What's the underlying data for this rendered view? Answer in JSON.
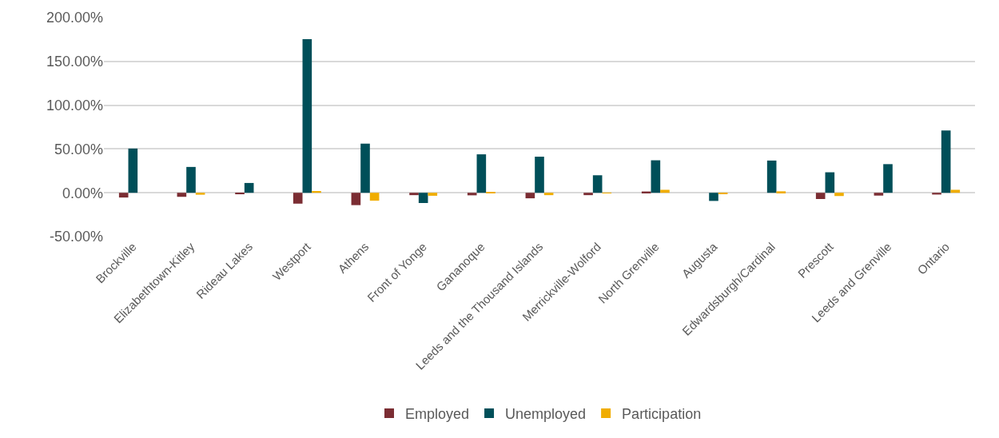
{
  "chart_data": {
    "type": "bar",
    "categories": [
      "Brockville",
      "Elizabethtown-Kitley",
      "Rideau Lakes",
      "Westport",
      "Athens",
      "Front of Yonge",
      "Gananoque",
      "Leeds and the Thousand Islands",
      "Merrickville-Wolford",
      "North Grenville",
      "Augusta",
      "Edwardsburgh/Cardinal",
      "Prescott",
      "Leeds and Grenville",
      "Ontario"
    ],
    "series": [
      {
        "name": "Employed",
        "color": "#7b2d33",
        "values": [
          -5.4,
          -4.6,
          -1.7,
          -12.4,
          -14.1,
          -2.7,
          -2.9,
          -6.3,
          -2.7,
          1.5,
          0,
          0,
          -7.1,
          -3.2,
          -2.0
        ]
      },
      {
        "name": "Unemployed",
        "color": "#004f59",
        "values": [
          50.5,
          29.5,
          11.2,
          175.4,
          56.1,
          -11.7,
          43.9,
          41.2,
          20.0,
          37.1,
          -9.3,
          36.8,
          23.4,
          32.7,
          71.2
        ]
      },
      {
        "name": "Participation",
        "color": "#f0ad00",
        "values": [
          0,
          -2.2,
          0,
          2.0,
          -9.0,
          -3.4,
          1.0,
          -2.7,
          -0.5,
          3.4,
          -1.0,
          1.7,
          -3.7,
          0,
          3.4
        ]
      }
    ],
    "ylim": [
      -50,
      200
    ],
    "yticks": [
      {
        "value": -50,
        "label": "-50.00%"
      },
      {
        "value": 0,
        "label": "0.00%"
      },
      {
        "value": 50,
        "label": "50.00%"
      },
      {
        "value": 100,
        "label": "100.00%"
      },
      {
        "value": 150,
        "label": "150.00%"
      },
      {
        "value": 200,
        "label": "200.00%"
      }
    ],
    "grid": "y",
    "legend": "bottom"
  }
}
